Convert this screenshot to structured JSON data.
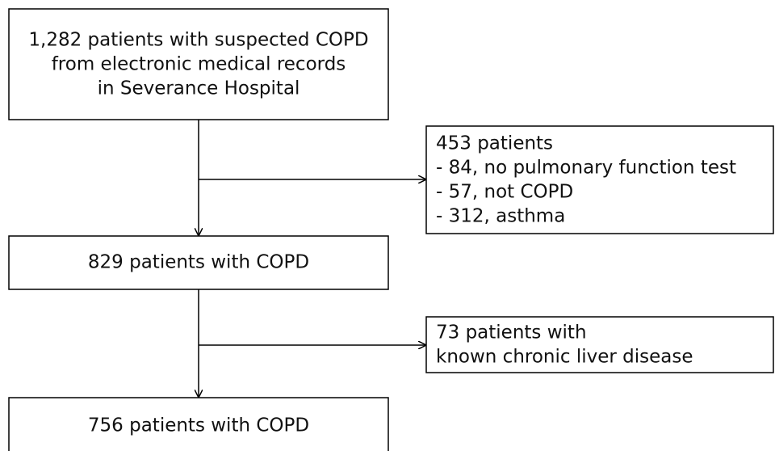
{
  "nodes": [
    {
      "lines": [
        "1,282 patients with suspected COPD",
        "from electronic medical records",
        "in Severance Hospital"
      ]
    },
    {
      "lines": [
        "453 patients",
        "- 84, no pulmonary function test",
        "- 57, not COPD",
        "- 312, asthma"
      ]
    },
    {
      "lines": [
        "829 patients with COPD"
      ]
    },
    {
      "lines": [
        "73 patients with",
        "known chronic liver disease"
      ]
    },
    {
      "lines": [
        "756 patients with COPD"
      ]
    }
  ]
}
